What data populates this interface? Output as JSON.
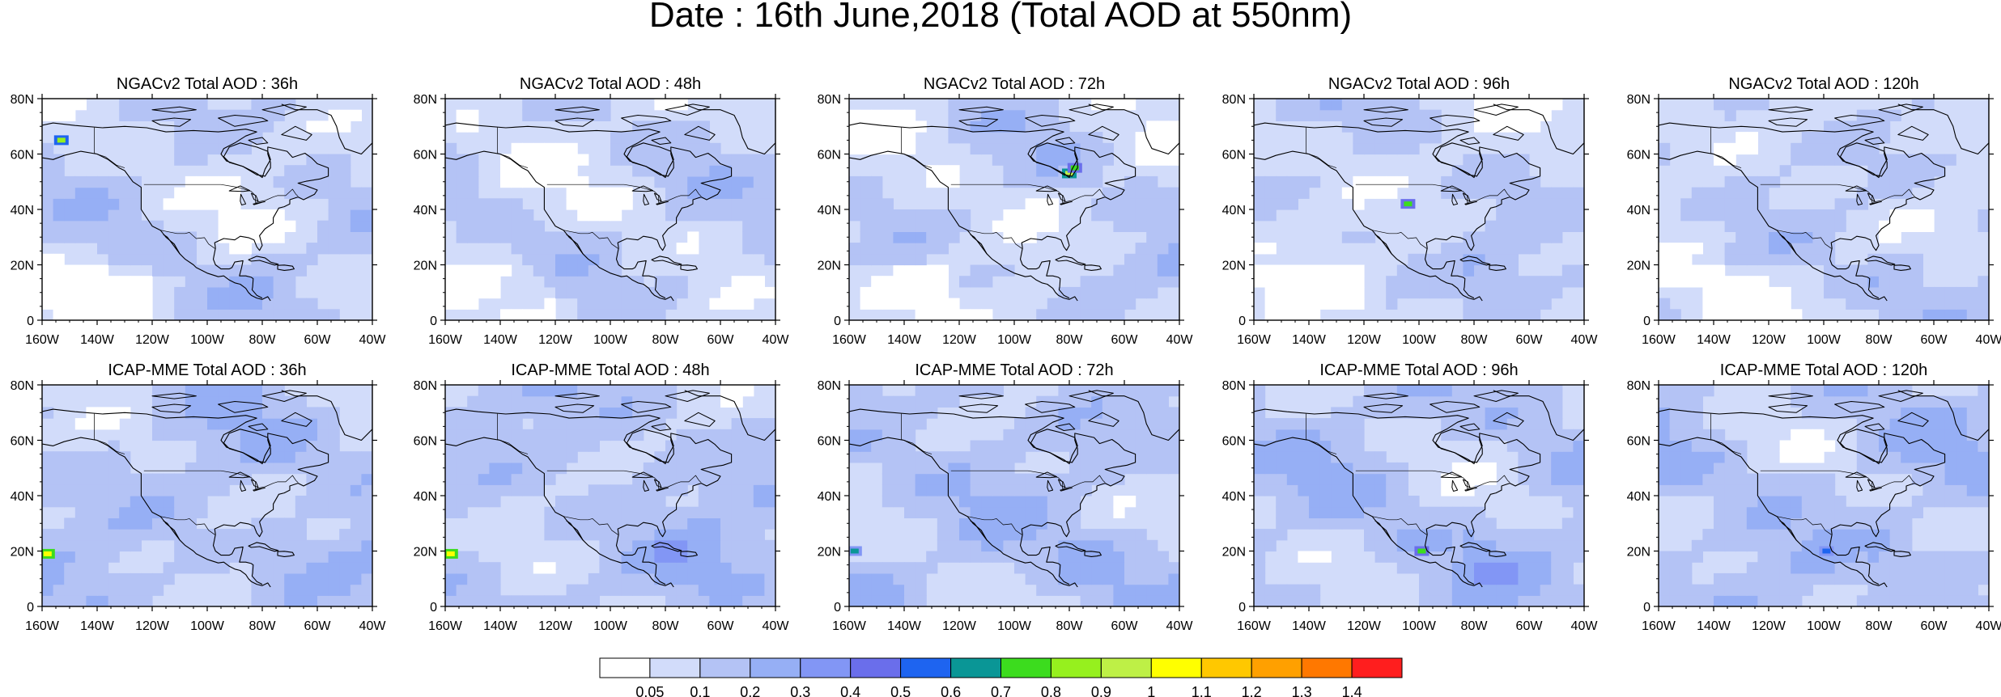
{
  "title": "Date : 16th June,2018 (Total AOD at 550nm)",
  "lat_labels": [
    "0",
    "20N",
    "40N",
    "60N",
    "80N"
  ],
  "lon_labels": [
    "160W",
    "140W",
    "120W",
    "100W",
    "80W",
    "60W",
    "40W"
  ],
  "rows": [
    {
      "model": "NGACv2",
      "panels": [
        {
          "title": "NGACv2 Total AOD : 36h",
          "lead": "36h",
          "hotspots": [
            {
              "lon": -153,
              "lat": 65,
              "level": 9
            }
          ]
        },
        {
          "title": "NGACv2 Total AOD : 48h",
          "lead": "48h",
          "hotspots": []
        },
        {
          "title": "NGACv2 Total AOD : 72h",
          "lead": "72h",
          "hotspots": [
            {
              "lon": -80,
              "lat": 53,
              "level": 10
            },
            {
              "lon": -78,
              "lat": 55,
              "level": 8
            }
          ]
        },
        {
          "title": "NGACv2 Total AOD : 96h",
          "lead": "96h",
          "hotspots": [
            {
              "lon": -104,
              "lat": 42,
              "level": 8
            }
          ]
        },
        {
          "title": "NGACv2 Total AOD : 120h",
          "lead": "120h",
          "hotspots": []
        }
      ]
    },
    {
      "model": "ICAP-MME",
      "panels": [
        {
          "title": "ICAP-MME Total AOD : 36h",
          "lead": "36h",
          "hotspots": [
            {
              "lon": -158,
              "lat": 19,
              "level": 11
            }
          ]
        },
        {
          "title": "ICAP-MME Total AOD : 48h",
          "lead": "48h",
          "hotspots": [
            {
              "lon": -158,
              "lat": 19,
              "level": 11
            }
          ]
        },
        {
          "title": "ICAP-MME Total AOD : 72h",
          "lead": "72h",
          "hotspots": [
            {
              "lon": -158,
              "lat": 20,
              "level": 7
            }
          ]
        },
        {
          "title": "ICAP-MME Total AOD : 96h",
          "lead": "96h",
          "hotspots": [
            {
              "lon": -99,
              "lat": 20,
              "level": 8
            }
          ]
        },
        {
          "title": "ICAP-MME Total AOD : 120h",
          "lead": "120h",
          "hotspots": [
            {
              "lon": -99,
              "lat": 20,
              "level": 6
            }
          ]
        }
      ]
    }
  ],
  "map_extent": {
    "lon": [
      -160,
      -40
    ],
    "lat": [
      0,
      80
    ]
  },
  "colorbar": {
    "colors": [
      "#ffffff",
      "#d2dcfa",
      "#b4c3f5",
      "#96aff5",
      "#8296f5",
      "#6a6eeb",
      "#1e64f0",
      "#0a9696",
      "#3cdc1e",
      "#96f01e",
      "#bef046",
      "#ffff00",
      "#ffc800",
      "#ffa000",
      "#ff7800",
      "#ff1e1e"
    ],
    "labels": [
      "0.05",
      "0.1",
      "0.2",
      "0.3",
      "0.4",
      "0.5",
      "0.6",
      "0.7",
      "0.8",
      "0.9",
      "1",
      "1.1",
      "1.2",
      "1.3",
      "1.4"
    ]
  }
}
